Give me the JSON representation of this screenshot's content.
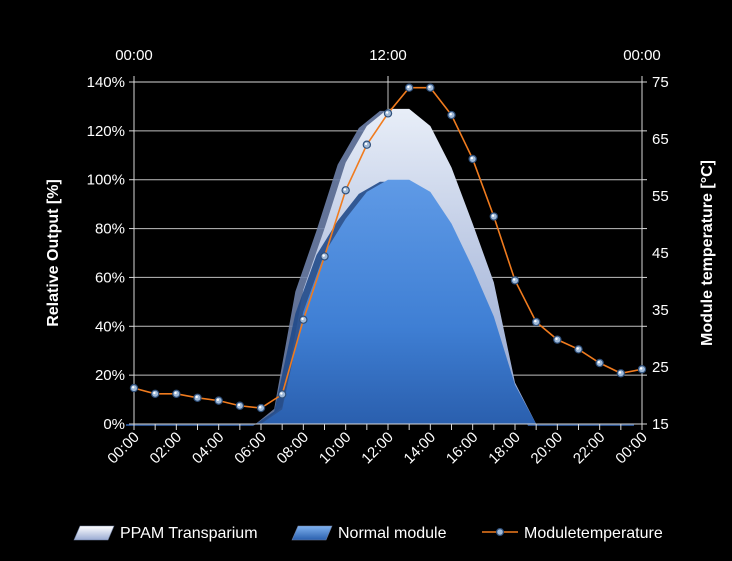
{
  "chart_data": {
    "type": "area",
    "x_categories": [
      "00:00",
      "01:00",
      "02:00",
      "03:00",
      "04:00",
      "05:00",
      "06:00",
      "07:00",
      "08:00",
      "09:00",
      "10:00",
      "11:00",
      "12:00",
      "13:00",
      "14:00",
      "15:00",
      "16:00",
      "17:00",
      "18:00",
      "19:00",
      "20:00",
      "21:00",
      "22:00",
      "23:00",
      "00:00"
    ],
    "x_tick_labels": [
      "00:00",
      "02:00",
      "04:00",
      "06:00",
      "08:00",
      "10:00",
      "12:00",
      "14:00",
      "16:00",
      "18:00",
      "20:00",
      "22:00",
      "00:00"
    ],
    "top_axis_labels": [
      "00:00",
      "12:00",
      "00:00"
    ],
    "ylabel_left": "Relative Output [%]",
    "ylabel_right": "Module temperature [°C]",
    "ylim_left": [
      0,
      140
    ],
    "ylim_right": [
      15,
      75
    ],
    "y_ticks_left": [
      "0%",
      "20%",
      "40%",
      "60%",
      "80%",
      "100%",
      "120%",
      "140%"
    ],
    "y_ticks_right": [
      "15",
      "25",
      "35",
      "45",
      "55",
      "65",
      "75"
    ],
    "grid": true,
    "legend_position": "bottom",
    "series": [
      {
        "name": "PPAM Transparium",
        "kind": "area",
        "color": "#b8c4e0",
        "values": [
          0,
          0,
          0,
          0,
          0,
          0,
          0,
          7,
          55,
          80,
          107,
          122,
          129,
          129,
          122,
          105,
          82,
          58,
          17,
          0,
          0,
          0,
          0,
          0,
          0
        ]
      },
      {
        "name": "Normal module",
        "kind": "area",
        "color": "#3f7fd4",
        "values": [
          0,
          0,
          0,
          0,
          0,
          0,
          0,
          6,
          46,
          70,
          84,
          95,
          100,
          100,
          95,
          82,
          64,
          44,
          16,
          0,
          0,
          0,
          0,
          0,
          0
        ]
      },
      {
        "name": "Moduletemperature",
        "kind": "line",
        "axis": "right",
        "color": "#f07b1e",
        "values": [
          21.3,
          20.3,
          20.3,
          19.6,
          19.1,
          18.2,
          17.8,
          20.2,
          33.3,
          44.4,
          56.0,
          64.0,
          69.5,
          74.0,
          74.0,
          69.2,
          61.5,
          51.4,
          40.2,
          32.9,
          29.8,
          28.1,
          25.7,
          23.9,
          24.6
        ]
      }
    ]
  }
}
